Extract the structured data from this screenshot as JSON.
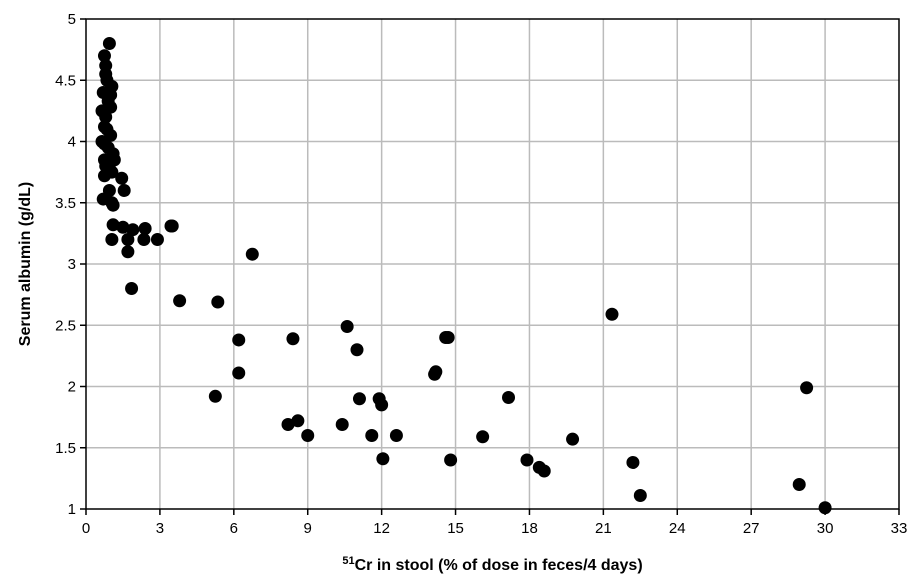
{
  "chart_data": {
    "type": "scatter",
    "title": "",
    "xlabel_superscript": "51",
    "xlabel_rest": "Cr in stool (% of dose in feces/4 days)",
    "ylabel": "Serum albumin (g/dL)",
    "xlim": [
      0,
      33
    ],
    "ylim": [
      1,
      5
    ],
    "x_ticks": [
      0,
      3,
      6,
      9,
      12,
      15,
      18,
      21,
      24,
      27,
      30,
      33
    ],
    "y_ticks": [
      1,
      1.5,
      2,
      2.5,
      3,
      3.5,
      4,
      4.5,
      5
    ],
    "x_tick_labels": [
      "0",
      "3",
      "6",
      "9",
      "12",
      "15",
      "18",
      "21",
      "24",
      "27",
      "30",
      "33"
    ],
    "y_tick_labels": [
      "1",
      "1.5",
      "2",
      "2.5",
      "3",
      "3.5",
      "4",
      "4.5",
      "5"
    ],
    "grid": true,
    "legend": "none",
    "marker_color": "#000000",
    "grid_color": "#bbbbbb",
    "points": [
      [
        0.95,
        4.8
      ],
      [
        0.75,
        4.7
      ],
      [
        0.8,
        4.62
      ],
      [
        0.8,
        4.55
      ],
      [
        0.85,
        4.5
      ],
      [
        1.05,
        4.45
      ],
      [
        0.7,
        4.4
      ],
      [
        1.0,
        4.38
      ],
      [
        0.9,
        4.33
      ],
      [
        1.0,
        4.28
      ],
      [
        0.65,
        4.25
      ],
      [
        0.8,
        4.2
      ],
      [
        0.75,
        4.12
      ],
      [
        0.85,
        4.1
      ],
      [
        1.0,
        4.05
      ],
      [
        0.65,
        4.0
      ],
      [
        0.75,
        3.98
      ],
      [
        0.9,
        3.95
      ],
      [
        1.1,
        3.9
      ],
      [
        0.75,
        3.85
      ],
      [
        1.15,
        3.85
      ],
      [
        0.8,
        3.8
      ],
      [
        0.95,
        3.78
      ],
      [
        1.05,
        3.75
      ],
      [
        0.75,
        3.72
      ],
      [
        1.45,
        3.7
      ],
      [
        0.95,
        3.6
      ],
      [
        1.55,
        3.6
      ],
      [
        0.7,
        3.53
      ],
      [
        1.05,
        3.5
      ],
      [
        1.1,
        3.48
      ],
      [
        1.1,
        3.32
      ],
      [
        1.5,
        3.3
      ],
      [
        1.9,
        3.28
      ],
      [
        2.4,
        3.29
      ],
      [
        3.45,
        3.31
      ],
      [
        3.5,
        3.31
      ],
      [
        1.05,
        3.2
      ],
      [
        1.7,
        3.2
      ],
      [
        2.35,
        3.2
      ],
      [
        2.9,
        3.2
      ],
      [
        1.7,
        3.1
      ],
      [
        6.75,
        3.08
      ],
      [
        1.85,
        2.8
      ],
      [
        3.8,
        2.7
      ],
      [
        5.35,
        2.69
      ],
      [
        21.35,
        2.59
      ],
      [
        10.6,
        2.49
      ],
      [
        14.6,
        2.4
      ],
      [
        14.7,
        2.4
      ],
      [
        6.2,
        2.38
      ],
      [
        8.4,
        2.39
      ],
      [
        11.0,
        2.3
      ],
      [
        14.15,
        2.1
      ],
      [
        14.2,
        2.12
      ],
      [
        6.2,
        2.11
      ],
      [
        29.25,
        1.99
      ],
      [
        17.15,
        1.91
      ],
      [
        5.25,
        1.92
      ],
      [
        11.1,
        1.9
      ],
      [
        11.9,
        1.9
      ],
      [
        12.0,
        1.85
      ],
      [
        8.2,
        1.69
      ],
      [
        8.6,
        1.72
      ],
      [
        10.4,
        1.69
      ],
      [
        9.0,
        1.6
      ],
      [
        11.6,
        1.6
      ],
      [
        12.6,
        1.6
      ],
      [
        16.1,
        1.59
      ],
      [
        19.75,
        1.57
      ],
      [
        12.05,
        1.41
      ],
      [
        14.8,
        1.4
      ],
      [
        17.9,
        1.4
      ],
      [
        18.4,
        1.34
      ],
      [
        18.6,
        1.31
      ],
      [
        22.2,
        1.38
      ],
      [
        22.5,
        1.11
      ],
      [
        28.95,
        1.2
      ],
      [
        30.0,
        1.01
      ]
    ]
  }
}
